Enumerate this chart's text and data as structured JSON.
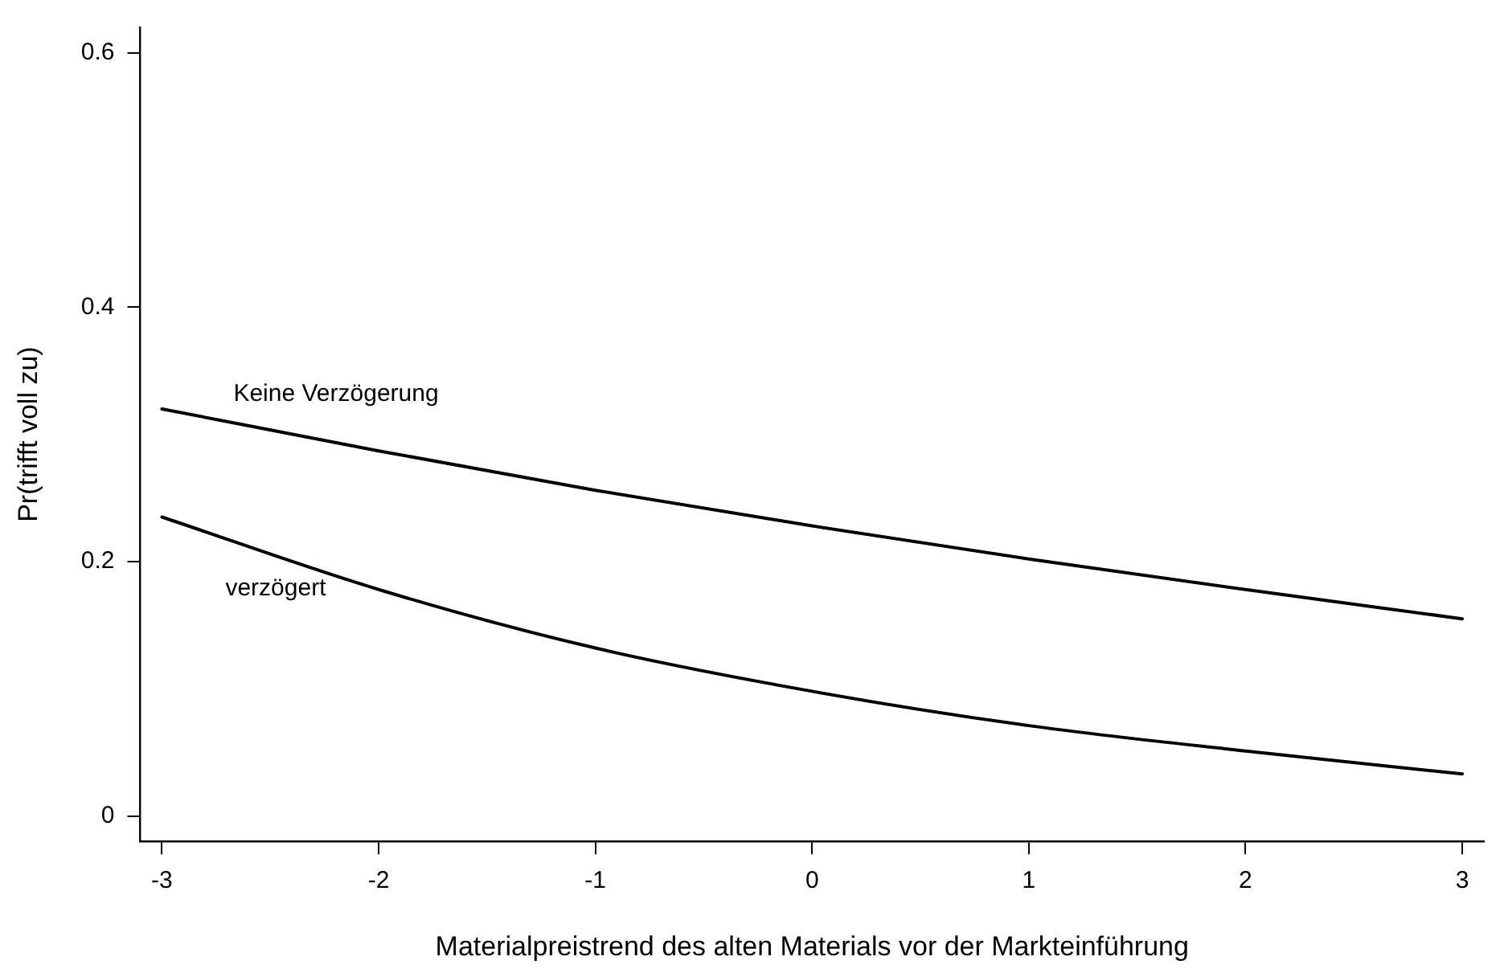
{
  "chart_data": {
    "type": "line",
    "xlabel": "Materialpreistrend des alten Materials vor der Markteinführung",
    "ylabel": "Pr(trifft voll zu)",
    "x": [
      -3,
      -2,
      -1,
      0,
      1,
      2,
      3
    ],
    "series": [
      {
        "name": "Keine Verzögerung",
        "color": "#000000",
        "values": [
          0.32,
          0.287,
          0.256,
          0.228,
          0.202,
          0.178,
          0.155
        ]
      },
      {
        "name": "verzögert",
        "color": "#000000",
        "values": [
          0.235,
          0.178,
          0.132,
          0.098,
          0.071,
          0.051,
          0.033
        ]
      }
    ],
    "xlim": [
      -3.1,
      3.1
    ],
    "xticks": [
      -3,
      -2,
      -1,
      0,
      1,
      2,
      3
    ],
    "ylim": [
      -0.02,
      0.62
    ],
    "yticks": [
      0,
      0.2,
      0.4,
      0.6
    ],
    "grid": false,
    "legend": false,
    "marker": "none",
    "line_style": "solid"
  }
}
